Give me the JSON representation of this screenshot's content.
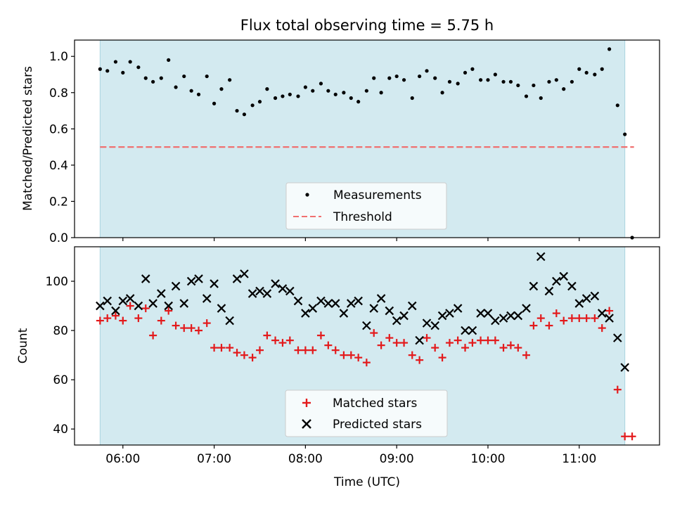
{
  "chart_data": [
    {
      "type": "scatter",
      "title": "Flux total observing time = 5.75 h",
      "xlabel": "",
      "ylabel": "Matched/Predicted stars",
      "ylim": [
        0,
        1.09
      ],
      "yticks": [
        "0.0",
        "0.2",
        "0.4",
        "0.6",
        "0.8",
        "1.0"
      ],
      "xlim_hours": [
        5.47,
        11.88
      ],
      "observing_window_hours": [
        5.75,
        11.5
      ],
      "shade_color": "#d3eaf0",
      "legend_placement": "lower center",
      "threshold": {
        "name": "Threshold",
        "y": 0.5,
        "x_range_hours": [
          5.75,
          11.6
        ],
        "color": "#f07070"
      },
      "series": [
        {
          "name": "Measurements",
          "marker": "dot",
          "color": "#000000",
          "x": [
            5.75,
            5.83,
            5.92,
            6.0,
            6.08,
            6.17,
            6.25,
            6.33,
            6.42,
            6.5,
            6.58,
            6.67,
            6.75,
            6.83,
            6.92,
            7.0,
            7.08,
            7.17,
            7.25,
            7.33,
            7.42,
            7.5,
            7.58,
            7.67,
            7.75,
            7.83,
            7.92,
            8.0,
            8.08,
            8.17,
            8.25,
            8.33,
            8.42,
            8.5,
            8.58,
            8.67,
            8.75,
            8.83,
            8.92,
            9.0,
            9.08,
            9.17,
            9.25,
            9.33,
            9.42,
            9.5,
            9.58,
            9.67,
            9.75,
            9.83,
            9.92,
            10.0,
            10.08,
            10.17,
            10.25,
            10.33,
            10.42,
            10.5,
            10.58,
            10.67,
            10.75,
            10.83,
            10.92,
            11.0,
            11.08,
            11.17,
            11.25,
            11.33,
            11.42,
            11.5,
            11.58
          ],
          "y": [
            0.93,
            0.92,
            0.97,
            0.91,
            0.97,
            0.94,
            0.88,
            0.86,
            0.88,
            0.98,
            0.83,
            0.89,
            0.81,
            0.79,
            0.89,
            0.74,
            0.82,
            0.87,
            0.7,
            0.68,
            0.73,
            0.75,
            0.82,
            0.77,
            0.78,
            0.79,
            0.78,
            0.83,
            0.81,
            0.85,
            0.81,
            0.79,
            0.8,
            0.77,
            0.75,
            0.81,
            0.88,
            0.8,
            0.88,
            0.89,
            0.87,
            0.77,
            0.89,
            0.92,
            0.88,
            0.8,
            0.86,
            0.85,
            0.91,
            0.93,
            0.87,
            0.87,
            0.9,
            0.86,
            0.86,
            0.84,
            0.78,
            0.84,
            0.77,
            0.86,
            0.87,
            0.82,
            0.86,
            0.93,
            0.91,
            0.9,
            0.93,
            1.04,
            0.73,
            0.57,
            0.0
          ]
        }
      ]
    },
    {
      "type": "scatter",
      "xlabel": "Time (UTC)",
      "ylabel": "Count",
      "ylim": [
        33.5,
        114
      ],
      "yticks": [
        "40",
        "60",
        "80",
        "100"
      ],
      "xticks": [
        "06:00",
        "07:00",
        "08:00",
        "09:00",
        "10:00",
        "11:00"
      ],
      "xlim_hours": [
        5.47,
        11.88
      ],
      "observing_window_hours": [
        5.75,
        11.5
      ],
      "legend_placement": "lower center",
      "series": [
        {
          "name": "Matched stars",
          "marker": "plus",
          "color": "#e31a1c",
          "x": [
            5.75,
            5.83,
            5.92,
            6.0,
            6.08,
            6.17,
            6.25,
            6.33,
            6.42,
            6.5,
            6.58,
            6.67,
            6.75,
            6.83,
            6.92,
            7.0,
            7.08,
            7.17,
            7.25,
            7.33,
            7.42,
            7.5,
            7.58,
            7.67,
            7.75,
            7.83,
            7.92,
            8.0,
            8.08,
            8.17,
            8.25,
            8.33,
            8.42,
            8.5,
            8.58,
            8.67,
            8.75,
            8.83,
            8.92,
            9.0,
            9.08,
            9.17,
            9.25,
            9.33,
            9.42,
            9.5,
            9.58,
            9.67,
            9.75,
            9.83,
            9.92,
            10.0,
            10.08,
            10.17,
            10.25,
            10.33,
            10.42,
            10.5,
            10.58,
            10.67,
            10.75,
            10.83,
            10.92,
            11.0,
            11.08,
            11.17,
            11.25,
            11.33,
            11.42,
            11.5,
            11.58
          ],
          "y": [
            84,
            85,
            86,
            84,
            90,
            85,
            89,
            78,
            84,
            88,
            82,
            81,
            81,
            80,
            83,
            73,
            73,
            73,
            71,
            70,
            69,
            72,
            78,
            76,
            75,
            76,
            72,
            72,
            72,
            78,
            74,
            72,
            70,
            70,
            69,
            67,
            79,
            74,
            77,
            75,
            75,
            70,
            68,
            77,
            73,
            69,
            75,
            76,
            73,
            75,
            76,
            76,
            76,
            73,
            74,
            73,
            70,
            82,
            85,
            82,
            87,
            84,
            85,
            85,
            85,
            85,
            81,
            88,
            56,
            37,
            37
          ]
        },
        {
          "name": "Predicted stars",
          "marker": "x",
          "color": "#000000",
          "x": [
            5.75,
            5.83,
            5.92,
            6.0,
            6.08,
            6.17,
            6.25,
            6.33,
            6.42,
            6.5,
            6.58,
            6.67,
            6.75,
            6.83,
            6.92,
            7.0,
            7.08,
            7.17,
            7.25,
            7.33,
            7.42,
            7.5,
            7.58,
            7.67,
            7.75,
            7.83,
            7.92,
            8.0,
            8.08,
            8.17,
            8.25,
            8.33,
            8.42,
            8.5,
            8.58,
            8.67,
            8.75,
            8.83,
            8.92,
            9.0,
            9.08,
            9.17,
            9.25,
            9.33,
            9.42,
            9.5,
            9.58,
            9.67,
            9.75,
            9.83,
            9.92,
            10.0,
            10.08,
            10.17,
            10.25,
            10.33,
            10.42,
            10.5,
            10.58,
            10.67,
            10.75,
            10.83,
            10.92,
            11.0,
            11.08,
            11.17,
            11.25,
            11.33,
            11.42,
            11.5
          ],
          "y": [
            90,
            92,
            88,
            92,
            93,
            90,
            101,
            91,
            95,
            90,
            98,
            91,
            100,
            101,
            93,
            99,
            89,
            84,
            101,
            103,
            95,
            96,
            95,
            99,
            97,
            96,
            92,
            87,
            89,
            92,
            91,
            91,
            87,
            91,
            92,
            82,
            89,
            93,
            88,
            84,
            86,
            90,
            76,
            83,
            82,
            86,
            87,
            89,
            80,
            80,
            87,
            87,
            84,
            85,
            86,
            86,
            89,
            98,
            110,
            96,
            100,
            102,
            98,
            91,
            93,
            94,
            87,
            85,
            77,
            65
          ]
        }
      ]
    }
  ]
}
